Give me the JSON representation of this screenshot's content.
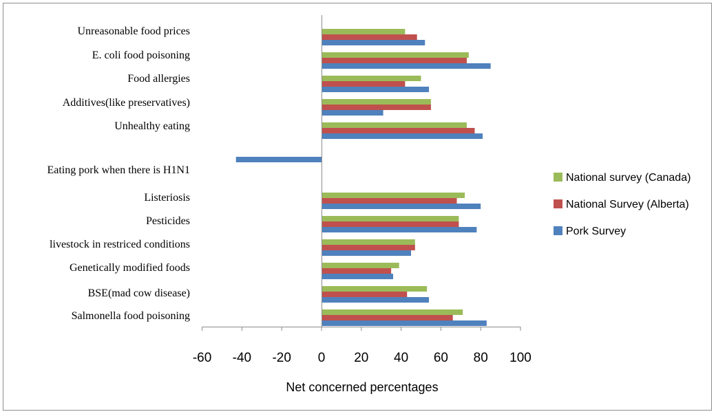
{
  "chart_data": {
    "type": "bar",
    "orientation": "horizontal",
    "categories": [
      "Unreasonable food prices",
      "E. coli food poisoning",
      "Food allergies",
      "Additives(like preservatives)",
      "Unhealthy eating",
      "Eating pork when there is H1N1",
      "Listeriosis",
      "Pesticides",
      "livestock in restriced conditions",
      "Genetically modified foods",
      "BSE(mad cow disease)",
      "Salmonella food poisoning"
    ],
    "series": [
      {
        "name": "National survey (Canada)",
        "color": "#9BBB59",
        "values": [
          42,
          74,
          50,
          55,
          73,
          null,
          72,
          69,
          47,
          39,
          53,
          71
        ]
      },
      {
        "name": "National Survey (Alberta)",
        "color": "#C0504D",
        "values": [
          48,
          73,
          42,
          55,
          77,
          null,
          68,
          69,
          47,
          35,
          43,
          66
        ]
      },
      {
        "name": "Pork Survey",
        "color": "#4F81BD",
        "values": [
          52,
          85,
          54,
          31,
          81,
          -43,
          80,
          78,
          45,
          36,
          54,
          83
        ]
      }
    ],
    "xticks": [
      "-60",
      "-40",
      "-20",
      "0",
      "20",
      "40",
      "60",
      "80",
      "100"
    ],
    "xlim": [
      -60,
      100
    ],
    "xlabel": "Net concerned percentages",
    "title": "",
    "legend_position": "right",
    "grid": false
  }
}
